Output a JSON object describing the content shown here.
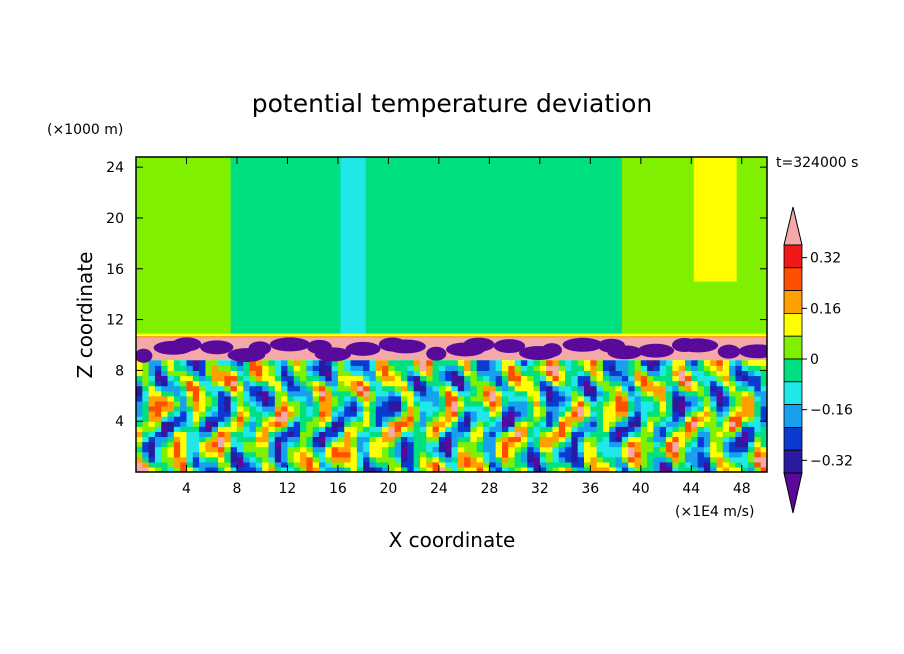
{
  "chart_data": {
    "type": "heatmap",
    "title": "potential temperature deviation",
    "xlabel": "X coordinate",
    "ylabel": "Z coordinate",
    "x_unit": "(×1E4 m/s)",
    "y_unit": "(×1000 m)",
    "time_label": "t=324000 s",
    "xlim": [
      0,
      50
    ],
    "ylim": [
      0,
      24.8
    ],
    "x_ticks": [
      4,
      8,
      12,
      16,
      20,
      24,
      28,
      32,
      36,
      40,
      44,
      48
    ],
    "y_ticks": [
      4,
      8,
      12,
      16,
      20,
      24
    ],
    "colorbar": {
      "levels": [
        -0.4,
        -0.32,
        -0.24,
        -0.16,
        -0.08,
        0,
        0.08,
        0.16,
        0.24,
        0.32,
        0.4
      ],
      "labels": [
        "0.32",
        "0.16",
        "0",
        "−0.16",
        "−0.32"
      ],
      "label_values": [
        0.32,
        0.16,
        0,
        -0.16,
        -0.32
      ],
      "colors": [
        "#5a0a9a",
        "#2a1aa0",
        "#0a3ad0",
        "#18a0f0",
        "#20e8e8",
        "#00e080",
        "#7ff000",
        "#ffff00",
        "#ffa000",
        "#ff5000",
        "#f01818",
        "#f4a8a8"
      ],
      "extend": "both"
    },
    "regions": [
      {
        "x": [
          0,
          50
        ],
        "z": [
          10.8,
          24.8
        ],
        "value": 0.04
      },
      {
        "x": [
          7.5,
          38.5
        ],
        "z": [
          10.8,
          24.8
        ],
        "value": -0.04
      },
      {
        "x": [
          16.2,
          18.2
        ],
        "z": [
          10.8,
          24.8
        ],
        "value": -0.1
      },
      {
        "x": [
          44.2,
          47.6
        ],
        "z": [
          15,
          24.8
        ],
        "value": 0.12
      },
      {
        "x": [
          0,
          50
        ],
        "z": [
          8.8,
          10.6
        ],
        "value": 0.44
      }
    ]
  }
}
